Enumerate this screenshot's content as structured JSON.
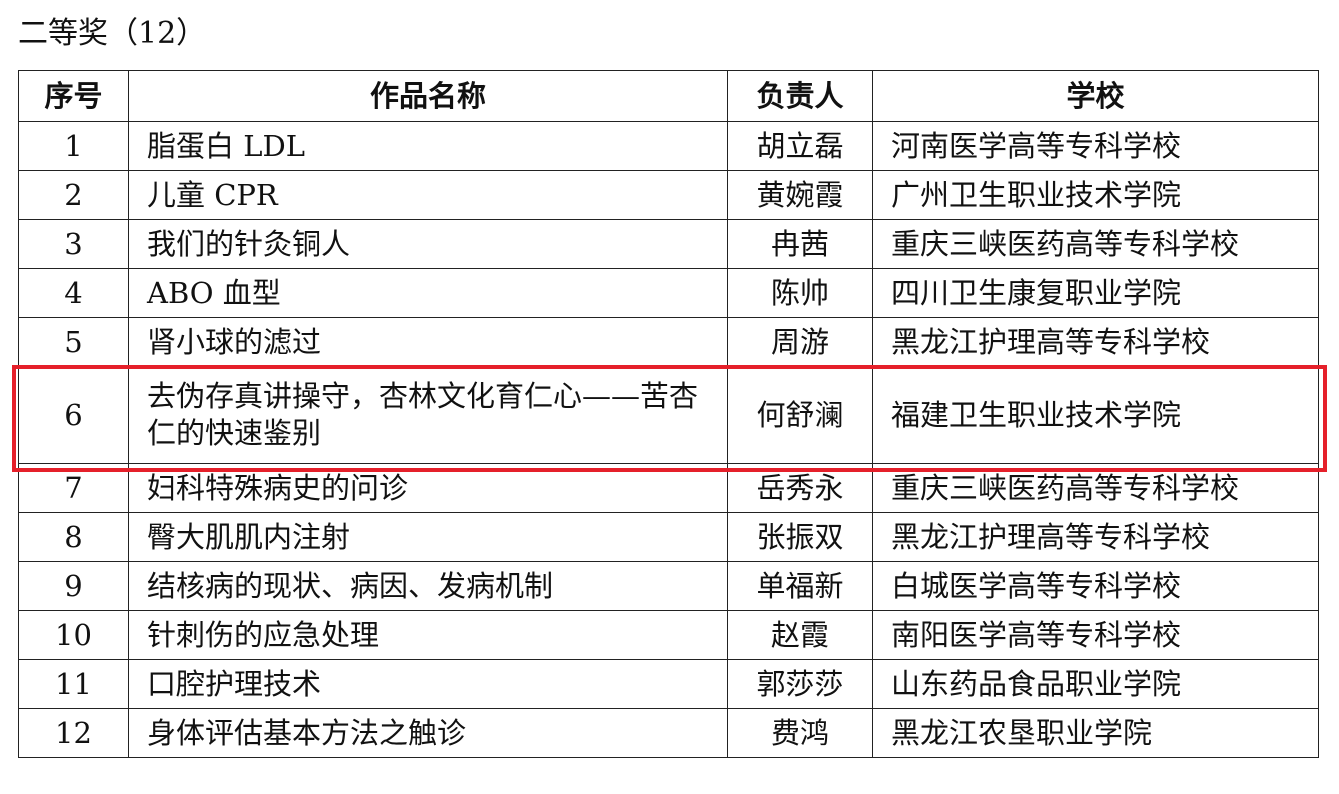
{
  "title": "二等奖（12）",
  "table": {
    "headers": [
      "序号",
      "作品名称",
      "负责人",
      "学校"
    ],
    "rows": [
      {
        "no": "1",
        "work": "脂蛋白 LDL",
        "leader": "胡立磊",
        "school": "河南医学高等专科学校"
      },
      {
        "no": "2",
        "work": "儿童 CPR",
        "leader": "黄婉霞",
        "school": "广州卫生职业技术学院"
      },
      {
        "no": "3",
        "work": "我们的针灸铜人",
        "leader": "冉茜",
        "school": "重庆三峡医药高等专科学校"
      },
      {
        "no": "4",
        "work": "ABO 血型",
        "leader": "陈帅",
        "school": "四川卫生康复职业学院"
      },
      {
        "no": "5",
        "work": "肾小球的滤过",
        "leader": "周游",
        "school": "黑龙江护理高等专科学校"
      },
      {
        "no": "6",
        "work": "去伪存真讲操守，杏林文化育仁心——苦杏仁的快速鉴别",
        "leader": "何舒澜",
        "school": "福建卫生职业技术学院",
        "highlighted": true
      },
      {
        "no": "7",
        "work": "妇科特殊病史的问诊",
        "leader": "岳秀永",
        "school": "重庆三峡医药高等专科学校"
      },
      {
        "no": "8",
        "work": "臀大肌肌内注射",
        "leader": "张振双",
        "school": "黑龙江护理高等专科学校"
      },
      {
        "no": "9",
        "work": "结核病的现状、病因、发病机制",
        "leader": "单福新",
        "school": "白城医学高等专科学校"
      },
      {
        "no": "10",
        "work": "针刺伤的应急处理",
        "leader": "赵霞",
        "school": "南阳医学高等专科学校"
      },
      {
        "no": "11",
        "work": "口腔护理技术",
        "leader": "郭莎莎",
        "school": "山东药品食品职业学院"
      },
      {
        "no": "12",
        "work": "身体评估基本方法之触诊",
        "leader": "费鸿",
        "school": "黑龙江农垦职业学院"
      }
    ]
  },
  "highlight_color": "#e5202a"
}
